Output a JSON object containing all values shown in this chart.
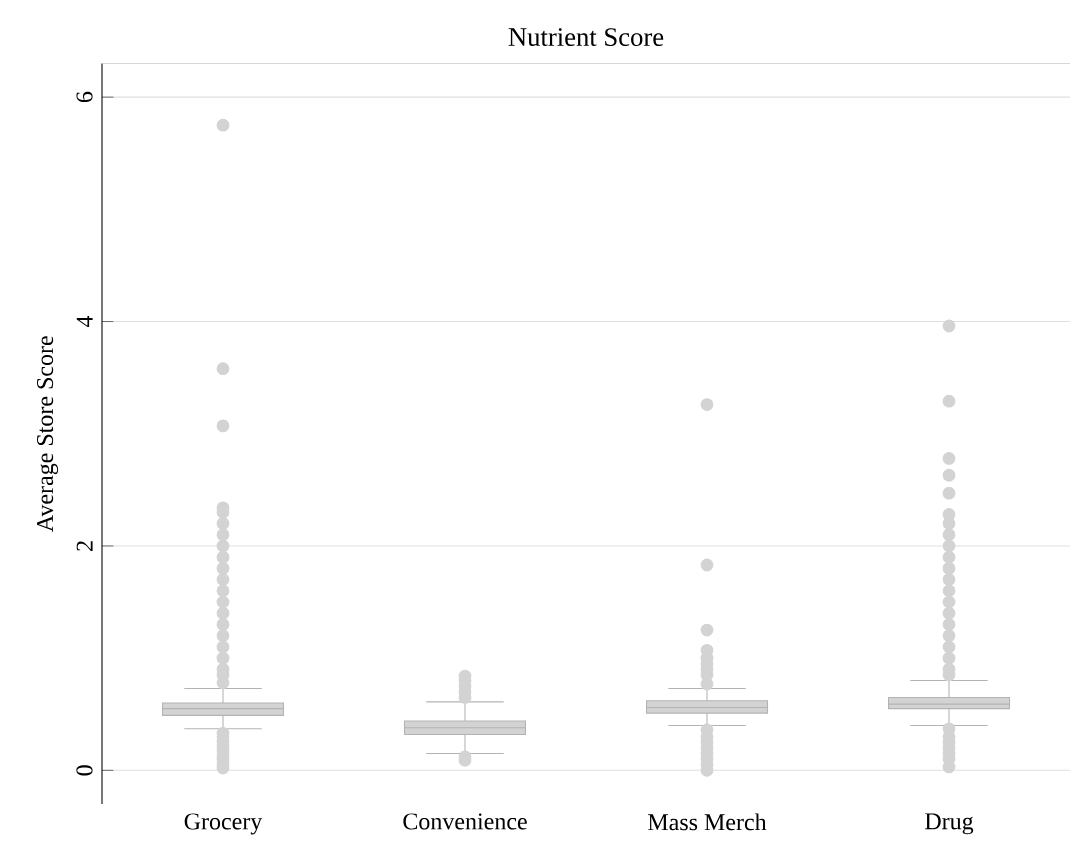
{
  "chart_data": {
    "type": "box",
    "title": "Nutrient Score",
    "ylabel": "Average Store Score",
    "categories": [
      "Grocery",
      "Convenience",
      "Mass Merch",
      "Drug"
    ],
    "boxes": [
      {
        "low": 0.37,
        "q1": 0.49,
        "median": 0.55,
        "q3": 0.6,
        "high": 0.73,
        "outliers": [
          0.02,
          0.06,
          0.1,
          0.14,
          0.18,
          0.22,
          0.26,
          0.3,
          0.33,
          0.78,
          0.85,
          0.9,
          1.0,
          1.1,
          1.2,
          1.3,
          1.4,
          1.5,
          1.6,
          1.7,
          1.8,
          1.9,
          2.0,
          2.1,
          2.2,
          2.3,
          2.34,
          3.07,
          3.58,
          5.75
        ]
      },
      {
        "low": 0.15,
        "q1": 0.32,
        "median": 0.38,
        "q3": 0.44,
        "high": 0.61,
        "outliers": [
          0.09,
          0.12,
          0.65,
          0.7,
          0.75,
          0.8,
          0.84
        ]
      },
      {
        "low": 0.4,
        "q1": 0.51,
        "median": 0.56,
        "q3": 0.62,
        "high": 0.73,
        "outliers": [
          0.0,
          0.05,
          0.1,
          0.15,
          0.2,
          0.25,
          0.3,
          0.36,
          0.77,
          0.85,
          0.9,
          0.95,
          1.0,
          1.07,
          1.25,
          1.83,
          3.26
        ]
      },
      {
        "low": 0.4,
        "q1": 0.55,
        "median": 0.59,
        "q3": 0.65,
        "high": 0.8,
        "outliers": [
          0.03,
          0.1,
          0.15,
          0.2,
          0.25,
          0.3,
          0.37,
          0.85,
          0.9,
          1.0,
          1.1,
          1.2,
          1.3,
          1.4,
          1.5,
          1.6,
          1.7,
          1.8,
          1.9,
          2.0,
          2.1,
          2.2,
          2.28,
          2.47,
          2.63,
          2.78,
          3.29,
          3.96
        ]
      }
    ],
    "color": "#d3d3d3",
    "ylim": [
      -0.3,
      6.3
    ],
    "yticks": [
      0,
      2,
      4,
      6
    ],
    "grid": "y"
  }
}
